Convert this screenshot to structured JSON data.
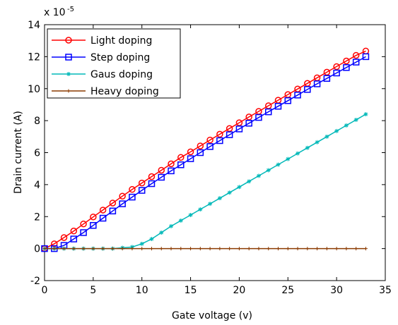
{
  "chart_data": {
    "type": "line",
    "xlabel": "Gate voltage (v)",
    "ylabel": "Drain current (A)",
    "y_multiplier_label": "x 10",
    "y_multiplier_exponent": "-5",
    "xlim": [
      0,
      35
    ],
    "ylim": [
      -2,
      14
    ],
    "x_ticks": [
      0,
      5,
      10,
      15,
      20,
      25,
      30,
      35
    ],
    "y_ticks": [
      -2,
      0,
      2,
      4,
      6,
      8,
      10,
      12,
      14
    ],
    "grid": false,
    "legend_position": "top-left",
    "series": [
      {
        "name": "Light doping",
        "color": "#ff0000",
        "marker": "circle",
        "x": [
          0,
          1,
          2,
          3,
          4,
          5,
          6,
          7,
          8,
          9,
          10,
          11,
          12,
          13,
          14,
          15,
          16,
          17,
          18,
          19,
          20,
          21,
          22,
          23,
          24,
          25,
          26,
          27,
          28,
          29,
          30,
          31,
          32,
          33
        ],
        "y": [
          0,
          0.3,
          0.69,
          1.1,
          1.54,
          1.98,
          2.41,
          2.85,
          3.28,
          3.7,
          4.1,
          4.5,
          4.9,
          5.3,
          5.7,
          6.05,
          6.42,
          6.79,
          7.15,
          7.51,
          7.87,
          8.23,
          8.58,
          8.93,
          9.28,
          9.63,
          9.98,
          10.33,
          10.68,
          11.03,
          11.38,
          11.73,
          12.08,
          12.35
        ]
      },
      {
        "name": "Step doping",
        "color": "#0000ff",
        "marker": "square",
        "x": [
          0,
          1,
          2,
          3,
          4,
          5,
          6,
          7,
          8,
          9,
          10,
          11,
          12,
          13,
          14,
          15,
          16,
          17,
          18,
          19,
          20,
          21,
          22,
          23,
          24,
          25,
          26,
          27,
          28,
          29,
          30,
          31,
          32,
          33
        ],
        "y": [
          0,
          0,
          0.2,
          0.6,
          1.0,
          1.45,
          1.9,
          2.35,
          2.8,
          3.22,
          3.64,
          4.06,
          4.46,
          4.86,
          5.24,
          5.62,
          6.0,
          6.38,
          6.75,
          7.12,
          7.48,
          7.84,
          8.2,
          8.55,
          8.9,
          9.25,
          9.6,
          9.95,
          10.3,
          10.64,
          10.98,
          11.32,
          11.66,
          12.0
        ]
      },
      {
        "name": "Gaus doping",
        "color": "#00b8b8",
        "marker": "star",
        "x": [
          0,
          1,
          2,
          3,
          4,
          5,
          6,
          7,
          8,
          9,
          10,
          11,
          12,
          13,
          14,
          15,
          16,
          17,
          18,
          19,
          20,
          21,
          22,
          23,
          24,
          25,
          26,
          27,
          28,
          29,
          30,
          31,
          32,
          33
        ],
        "y": [
          0,
          0,
          0,
          0,
          0,
          0,
          0,
          0,
          0.05,
          0.1,
          0.3,
          0.6,
          1.0,
          1.4,
          1.75,
          2.1,
          2.45,
          2.8,
          3.15,
          3.5,
          3.85,
          4.2,
          4.55,
          4.9,
          5.25,
          5.6,
          5.95,
          6.3,
          6.65,
          7.0,
          7.35,
          7.7,
          8.05,
          8.4
        ]
      },
      {
        "name": "Heavy doping",
        "color": "#8b3a00",
        "marker": "plus",
        "x": [
          0,
          1,
          2,
          3,
          4,
          5,
          6,
          7,
          8,
          9,
          10,
          11,
          12,
          13,
          14,
          15,
          16,
          17,
          18,
          19,
          20,
          21,
          22,
          23,
          24,
          25,
          26,
          27,
          28,
          29,
          30,
          31,
          32,
          33
        ],
        "y": [
          0,
          0,
          0,
          0,
          0,
          0,
          0,
          0,
          0,
          0,
          0,
          0,
          0,
          0,
          0,
          0,
          0,
          0,
          0,
          0,
          0,
          0,
          0,
          0,
          0,
          0,
          0,
          0,
          0,
          0,
          0,
          0,
          0,
          0
        ]
      }
    ]
  }
}
